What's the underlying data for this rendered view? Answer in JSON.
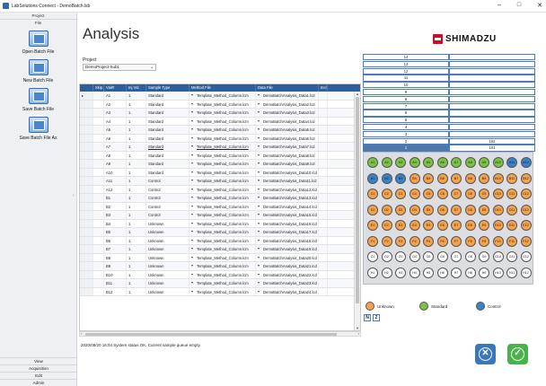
{
  "window": {
    "title": "LabSolutions Connect - DemoBatch.lsb",
    "minimize": "–",
    "maximize": "□",
    "close": "✕"
  },
  "sidebar": {
    "top_sections": [
      "Project",
      "File"
    ],
    "tools": [
      {
        "label": "Open Batch File",
        "icon": "open-batch-file-icon"
      },
      {
        "label": "New Batch File",
        "icon": "new-batch-file-icon"
      },
      {
        "label": "Save Batch File",
        "icon": "save-batch-file-icon"
      },
      {
        "label": "Save Batch File As",
        "icon": "save-batch-file-as-icon"
      }
    ],
    "bottom_sections": [
      "View",
      "Acquisition",
      "Edit",
      "Admin"
    ]
  },
  "main": {
    "title": "Analysis",
    "brand": "SHIMADZU",
    "project_label": "Project",
    "project_value": "DemoProject-Sub1"
  },
  "table": {
    "columns": [
      "",
      "Skip",
      "Vial#",
      "Inj Vol.",
      "Sample Type",
      "Method File",
      "Data File",
      "Incl"
    ],
    "rows": [
      {
        "skip": "",
        "vial": "A1",
        "inj": "1",
        "type": "Standard",
        "method": "Template_Method_Column.lcm",
        "data": "DemoBatchAnalysis_Data1.lcd",
        "current": true
      },
      {
        "skip": "",
        "vial": "A2",
        "inj": "1",
        "type": "Standard",
        "method": "Template_Method_Column.lcm",
        "data": "DemoBatchAnalysis_Data2.lcd"
      },
      {
        "skip": "",
        "vial": "A3",
        "inj": "1",
        "type": "Standard",
        "method": "Template_Method_Column.lcm",
        "data": "DemoBatchAnalysis_Data3.lcd"
      },
      {
        "skip": "",
        "vial": "A4",
        "inj": "1",
        "type": "Standard",
        "method": "Template_Method_Column.lcm",
        "data": "DemoBatchAnalysis_Data4.lcd"
      },
      {
        "skip": "",
        "vial": "A5",
        "inj": "1",
        "type": "Standard",
        "method": "Template_Method_Column.lcm",
        "data": "DemoBatchAnalysis_Data5.lcd"
      },
      {
        "skip": "",
        "vial": "A6",
        "inj": "1",
        "type": "Standard",
        "method": "Template_Method_Column.lcm",
        "data": "DemoBatchAnalysis_Data6.lcd"
      },
      {
        "skip": "",
        "vial": "A7",
        "inj": "1",
        "type": "Standard",
        "method": "Template_Method_Column.lcm",
        "data": "DemoBatchAnalysis_Data7.lcd",
        "underline": true
      },
      {
        "skip": "",
        "vial": "A8",
        "inj": "1",
        "type": "Standard",
        "method": "Template_Method_Column.lcm",
        "data": "DemoBatchAnalysis_Data8.lcd"
      },
      {
        "skip": "",
        "vial": "A9",
        "inj": "1",
        "type": "Standard",
        "method": "Template_Method_Column.lcm",
        "data": "DemoBatchAnalysis_Data9.lcd"
      },
      {
        "skip": "",
        "vial": "A10",
        "inj": "1",
        "type": "Standard",
        "method": "Template_Method_Column.lcm",
        "data": "DemoBatchAnalysis_Data10.lcd"
      },
      {
        "skip": "",
        "vial": "A11",
        "inj": "1",
        "type": "Control",
        "method": "Template_Method_Column.lcm",
        "data": "DemoBatchAnalysis_Data11.lcd"
      },
      {
        "skip": "",
        "vial": "A12",
        "inj": "1",
        "type": "Control",
        "method": "Template_Method_Column.lcm",
        "data": "DemoBatchAnalysis_Data12.lcd"
      },
      {
        "skip": "",
        "vial": "B1",
        "inj": "1",
        "type": "Control",
        "method": "Template_Method_Column.lcm",
        "data": "DemoBatchAnalysis_Data13.lcd"
      },
      {
        "skip": "",
        "vial": "B2",
        "inj": "1",
        "type": "Control",
        "method": "Template_Method_Column.lcm",
        "data": "DemoBatchAnalysis_Data14.lcd"
      },
      {
        "skip": "",
        "vial": "B3",
        "inj": "1",
        "type": "Control",
        "method": "Template_Method_Column.lcm",
        "data": "DemoBatchAnalysis_Data15.lcd"
      },
      {
        "skip": "",
        "vial": "B4",
        "inj": "1",
        "type": "Unknown",
        "method": "Template_Method_Column.lcm",
        "data": "DemoBatchAnalysis_Data16.lcd"
      },
      {
        "skip": "",
        "vial": "B5",
        "inj": "1",
        "type": "Unknown",
        "method": "Template_Method_Column.lcm",
        "data": "DemoBatchAnalysis_Data17.lcd"
      },
      {
        "skip": "",
        "vial": "B6",
        "inj": "1",
        "type": "Unknown",
        "method": "Template_Method_Column.lcm",
        "data": "DemoBatchAnalysis_Data18.lcd"
      },
      {
        "skip": "",
        "vial": "B7",
        "inj": "1",
        "type": "Unknown",
        "method": "Template_Method_Column.lcm",
        "data": "DemoBatchAnalysis_Data19.lcd"
      },
      {
        "skip": "",
        "vial": "B8",
        "inj": "1",
        "type": "Unknown",
        "method": "Template_Method_Column.lcm",
        "data": "DemoBatchAnalysis_Data20.lcd"
      },
      {
        "skip": "",
        "vial": "B9",
        "inj": "1",
        "type": "Unknown",
        "method": "Template_Method_Column.lcm",
        "data": "DemoBatchAnalysis_Data21.lcd"
      },
      {
        "skip": "",
        "vial": "B10",
        "inj": "1",
        "type": "Unknown",
        "method": "Template_Method_Column.lcm",
        "data": "DemoBatchAnalysis_Data22.lcd"
      },
      {
        "skip": "",
        "vial": "B11",
        "inj": "1",
        "type": "Unknown",
        "method": "Template_Method_Column.lcm",
        "data": "DemoBatchAnalysis_Data23.lcd"
      },
      {
        "skip": "",
        "vial": "B12",
        "inj": "1",
        "type": "Unknown",
        "method": "Template_Method_Column.lcm",
        "data": "DemoBatchAnalysis_Data24.lcd"
      }
    ]
  },
  "status_text": "2020/08/20 16:04 System status OK.  Current sample queue empty.",
  "stack": {
    "rows": [
      {
        "left": "14",
        "right": ""
      },
      {
        "left": "13",
        "right": ""
      },
      {
        "left": "12",
        "right": ""
      },
      {
        "left": "11",
        "right": ""
      },
      {
        "left": "10",
        "right": ""
      },
      {
        "left": "9",
        "right": ""
      },
      {
        "left": "8",
        "right": ""
      },
      {
        "left": "7",
        "right": ""
      },
      {
        "left": "6",
        "right": ""
      },
      {
        "left": "5",
        "right": ""
      },
      {
        "left": "4",
        "right": ""
      },
      {
        "left": "3",
        "right": ""
      },
      {
        "left": "2",
        "right": "102"
      },
      {
        "left": "1",
        "right": "101",
        "selected": true
      }
    ]
  },
  "plate": {
    "rows": [
      "A",
      "B",
      "C",
      "D",
      "E",
      "F",
      "G",
      "H"
    ],
    "cols": 12,
    "wells": {
      "A": [
        "Standard",
        "Standard",
        "Standard",
        "Standard",
        "Standard",
        "Standard",
        "Standard",
        "Standard",
        "Standard",
        "Standard",
        "Control",
        "Control"
      ],
      "B": [
        "Control",
        "Control",
        "Control",
        "Unknown",
        "Unknown",
        "Unknown",
        "Unknown",
        "Unknown",
        "Unknown",
        "Unknown",
        "Unknown",
        "Unknown"
      ],
      "C": [
        "Unknown",
        "Unknown",
        "Unknown",
        "Unknown",
        "Unknown",
        "Unknown",
        "Unknown",
        "Unknown",
        "Unknown",
        "Unknown",
        "Unknown",
        "Unknown"
      ],
      "D": [
        "Unknown",
        "Unknown",
        "Unknown",
        "Unknown",
        "Unknown",
        "Unknown",
        "Unknown",
        "Unknown",
        "Unknown",
        "Unknown",
        "Unknown",
        "Unknown"
      ],
      "E": [
        "Unknown",
        "Unknown",
        "Unknown",
        "Unknown",
        "Unknown",
        "Unknown",
        "Unknown",
        "Unknown",
        "Unknown",
        "Unknown",
        "Unknown",
        "Unknown"
      ],
      "F": [
        "Unknown",
        "Unknown",
        "Unknown",
        "Unknown",
        "Unknown",
        "Unknown",
        "Unknown",
        "Unknown",
        "Unknown",
        "Unknown",
        "Unknown",
        "Unknown"
      ],
      "G": [
        "Empty",
        "Empty",
        "Empty",
        "Empty",
        "Empty",
        "Empty",
        "Empty",
        "Empty",
        "Empty",
        "Empty",
        "Empty",
        "Empty"
      ],
      "H": [
        "Empty",
        "Empty",
        "Empty",
        "Empty",
        "Empty",
        "Empty",
        "Empty",
        "Empty",
        "Empty",
        "Empty",
        "Empty",
        "Empty"
      ]
    },
    "colors": {
      "Standard": "#7cc243",
      "Control": "#3a82c8",
      "Unknown": "#f5a24a",
      "Empty": "#ffffff"
    }
  },
  "legend": [
    {
      "label": "Unknown",
      "color": "#f5a24a"
    },
    {
      "label": "Standard",
      "color": "#7cc243"
    },
    {
      "label": "Control",
      "color": "#3a82c8"
    }
  ],
  "n_box": {
    "n": "N",
    "value": "2"
  },
  "buttons": {
    "cancel_icon": "cancel-icon",
    "ok_icon": "ok-check-icon",
    "cancel_glyph": "✕",
    "ok_glyph": "✓"
  }
}
